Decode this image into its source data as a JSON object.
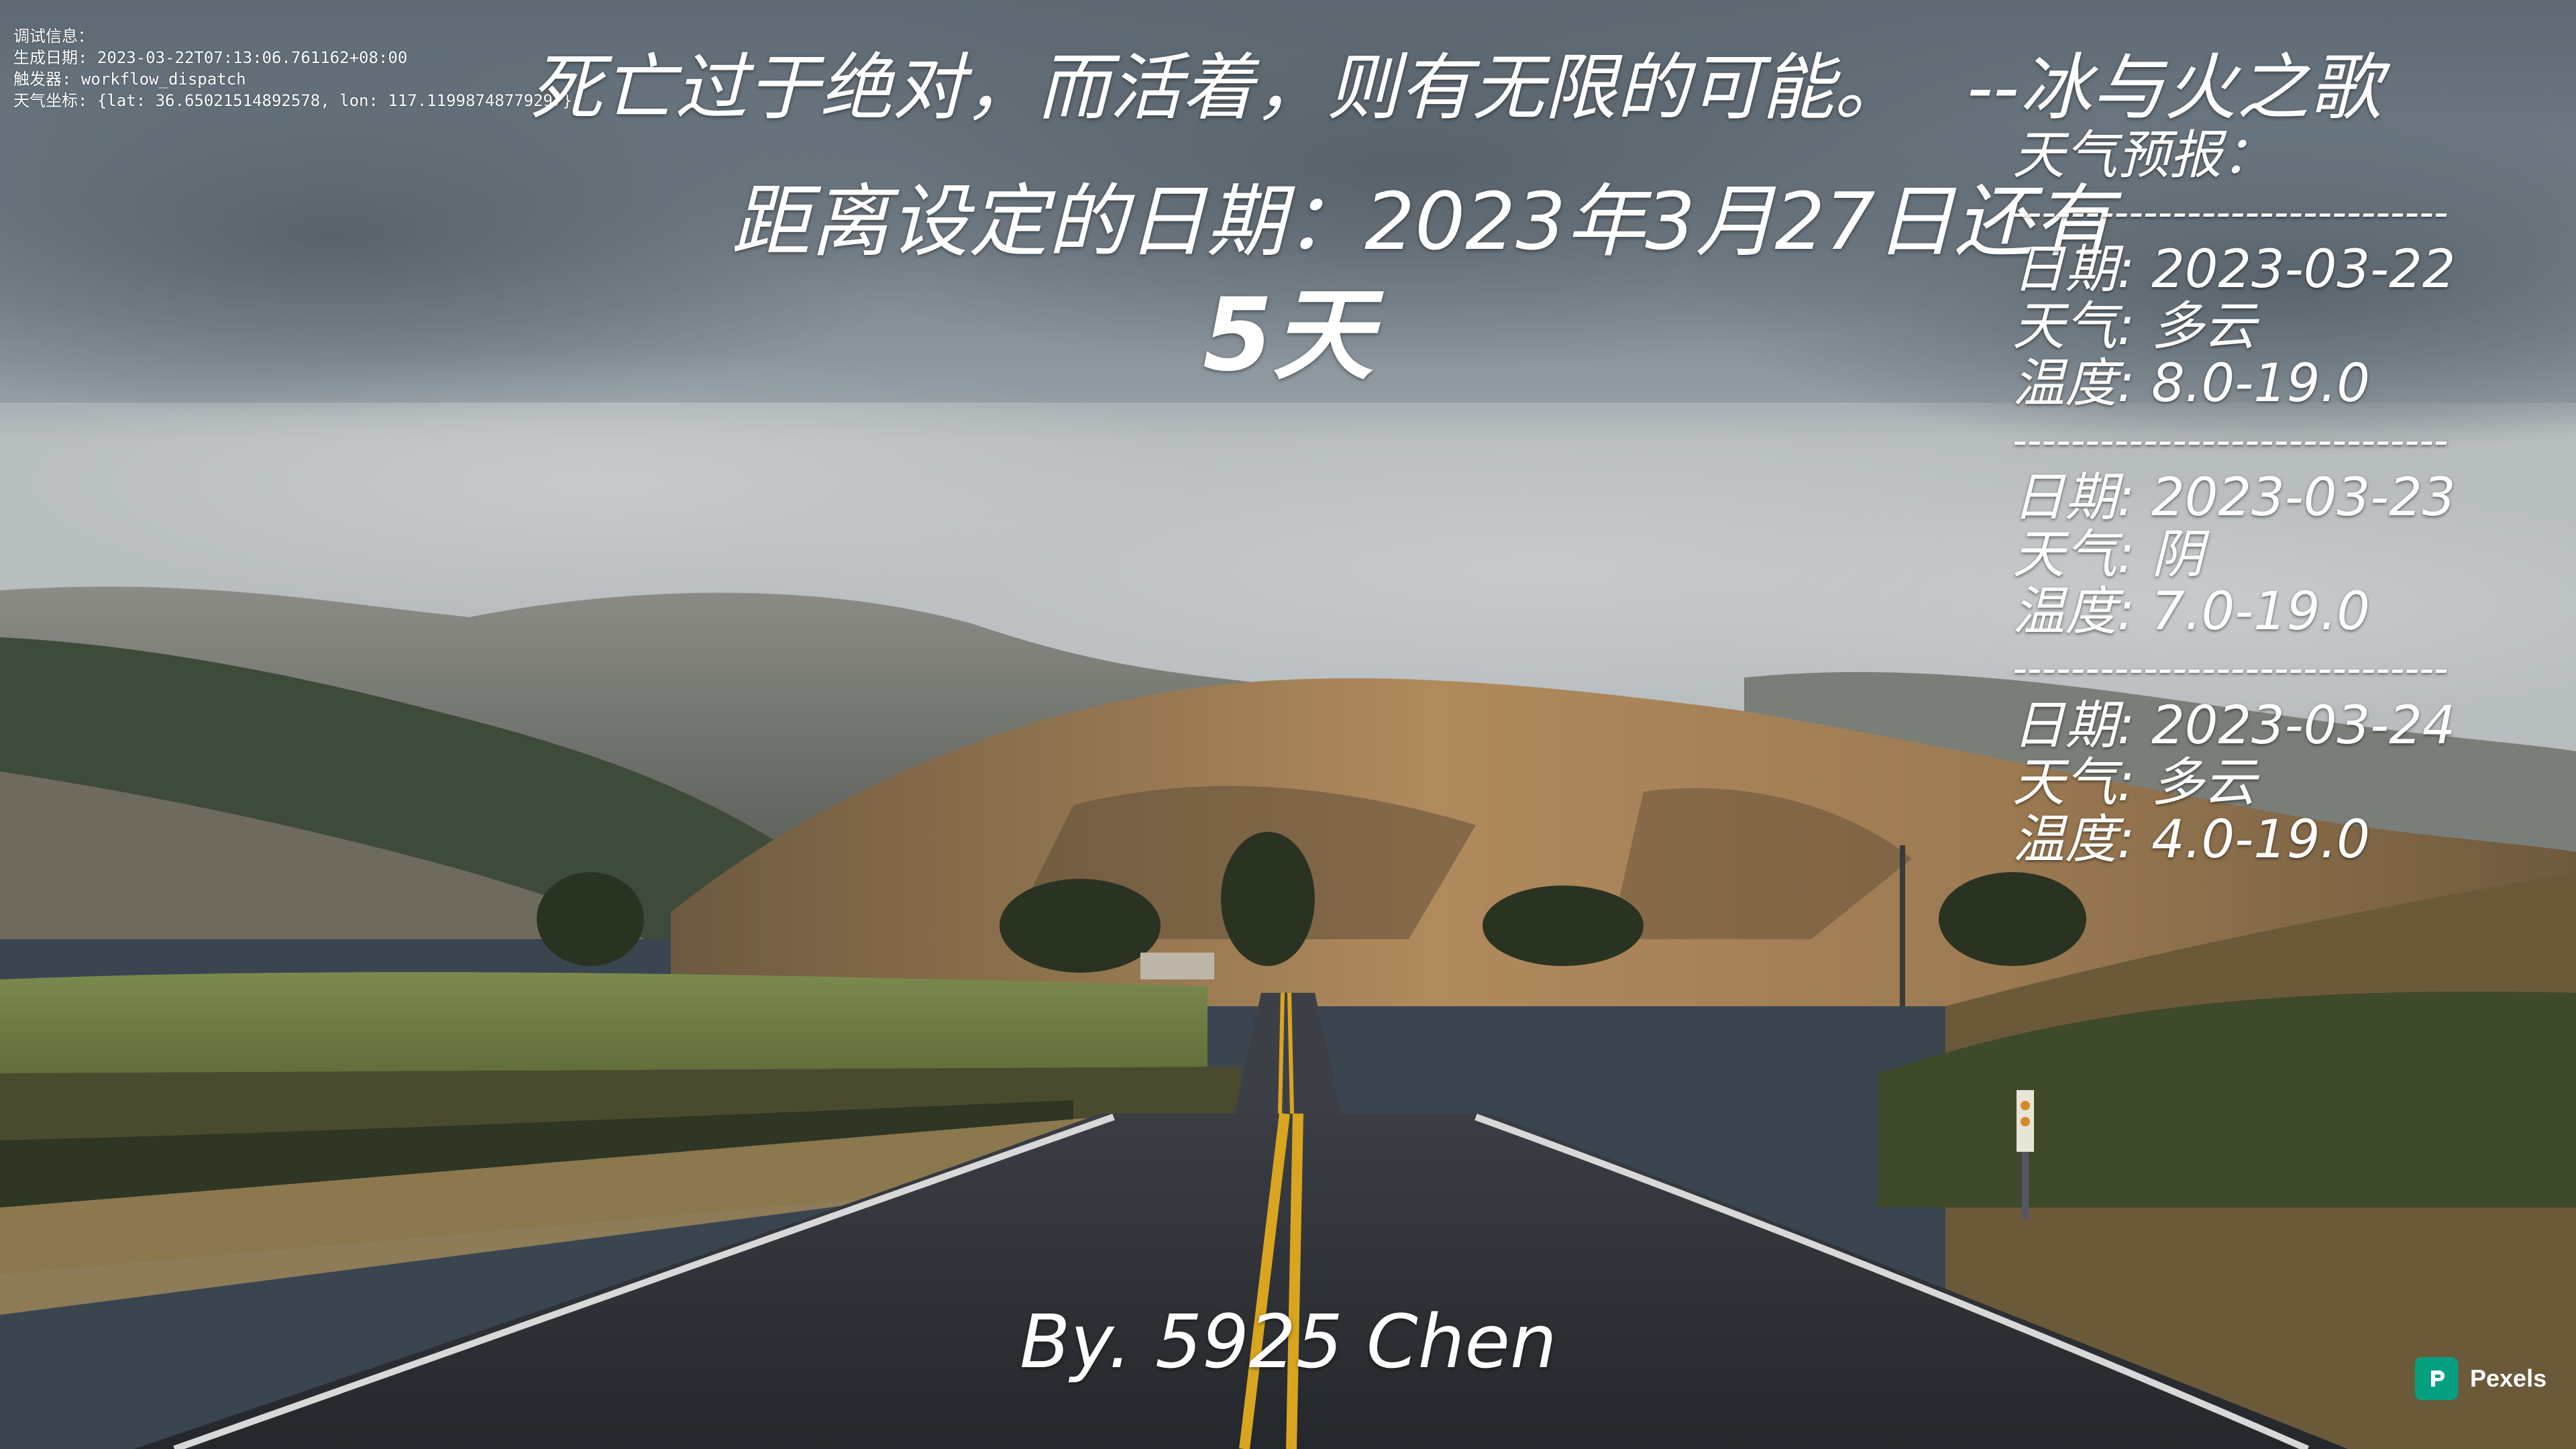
{
  "debug": {
    "title": "调试信息：",
    "generated": "生成日期: 2023-03-22T07:13:06.761162+08:00",
    "trigger": "触发器: workflow_dispatch",
    "coords": "天气坐标: {lat: 36.65021514892578, lon: 117.11998748779297}"
  },
  "quote": {
    "text": "死亡过于绝对，而活着，则有无限的可能。",
    "author": "--冰与火之歌"
  },
  "countdown": {
    "label": "距离设定的日期：2023年3月27日还有",
    "days": "5天"
  },
  "weather": {
    "title": "天气预报：",
    "separator": "------------------------------",
    "days": [
      {
        "date": "日期: 2023-03-22",
        "weather": "天气: 多云",
        "temp": "温度: 8.0-19.0"
      },
      {
        "date": "日期: 2023-03-23",
        "weather": "天气: 阴",
        "temp": "温度: 7.0-19.0"
      },
      {
        "date": "日期: 2023-03-24",
        "weather": "天气: 多云",
        "temp": "温度: 4.0-19.0"
      }
    ]
  },
  "signature": "By. 5925 Chen",
  "credit": {
    "name": "Pexels",
    "icon": "pexels-logo-icon"
  },
  "colors": {
    "credit_green": "#05a081",
    "text": "#ffffff"
  }
}
